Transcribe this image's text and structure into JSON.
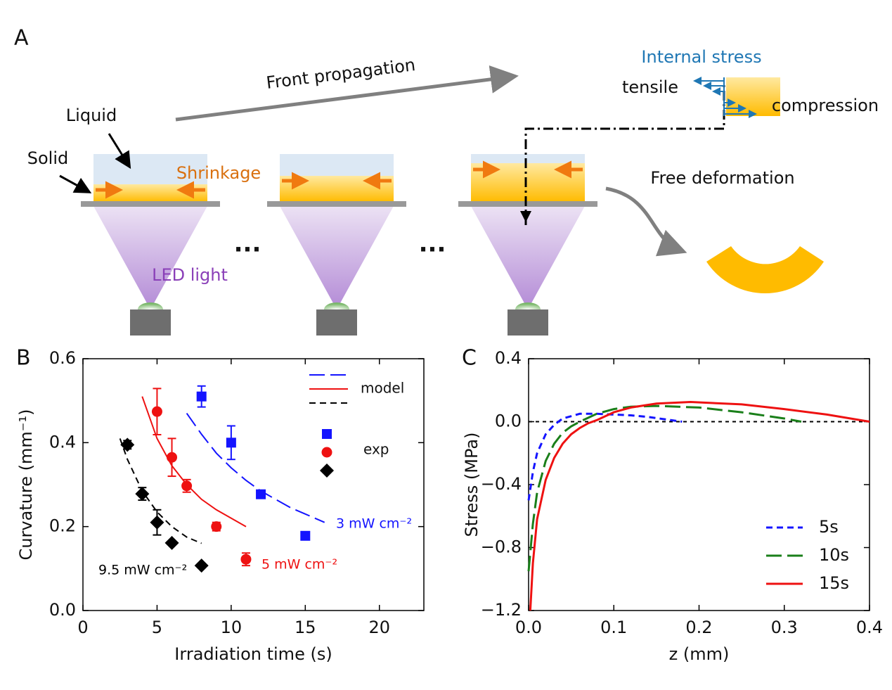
{
  "diagram": {
    "panel": "A",
    "front": "Front propagation",
    "internal_stress": "Internal stress",
    "tensile": "tensile",
    "compression": "compression",
    "liquid": "Liquid",
    "solid": "Solid",
    "shrinkage": "Shrinkage",
    "free": "Free deformation",
    "led": "LED light",
    "dots": [
      "...",
      "..."
    ]
  },
  "chart_data": [
    {
      "type": "scatter",
      "panel": "B",
      "xlabel": "Irradiation time (s)",
      "ylabel": "Curvature (mm⁻¹)",
      "xlim": [
        0,
        23
      ],
      "xticks": [
        0,
        5,
        10,
        15,
        20
      ],
      "ylim": [
        0,
        0.6
      ],
      "yticks": [
        {
          "value": 0,
          "label": "0.0"
        },
        0.2,
        0.4,
        0.6
      ],
      "legend": [
        "model",
        "exp"
      ],
      "series": [
        {
          "name": "3 mW cm⁻²",
          "color": "#1414ff",
          "marker": "square",
          "dash": "long-dashed",
          "x": [
            8,
            10,
            12,
            15
          ],
          "values": [
            0.51,
            0.4,
            0.277,
            0.178
          ],
          "errors": [
            0.025,
            0.04,
            null,
            null
          ],
          "model_x": [
            7,
            8,
            9,
            10,
            11,
            12,
            13,
            14,
            15,
            16.3
          ],
          "model_values": [
            0.47,
            0.42,
            0.375,
            0.34,
            0.31,
            0.285,
            0.265,
            0.245,
            0.23,
            0.21
          ]
        },
        {
          "name": "5 mW cm⁻²",
          "color": "#ee1111",
          "marker": "circle",
          "dash": "solid",
          "x": [
            5,
            6,
            7,
            9,
            11
          ],
          "values": [
            0.474,
            0.365,
            0.297,
            0.2,
            0.122
          ],
          "errors": [
            0.055,
            0.045,
            0.015,
            0.01,
            0.015
          ],
          "model_x": [
            4,
            5,
            6,
            7,
            8,
            9,
            10,
            11
          ],
          "model_values": [
            0.51,
            0.41,
            0.345,
            0.3,
            0.265,
            0.24,
            0.22,
            0.2
          ]
        },
        {
          "name": "9.5 mW cm⁻²",
          "color": "#000000",
          "marker": "diamond",
          "dash": "dashed",
          "x": [
            3,
            4,
            5,
            6,
            8
          ],
          "values": [
            0.395,
            0.278,
            0.21,
            0.161,
            0.107
          ],
          "errors": [
            0.01,
            0.015,
            0.03,
            null,
            null
          ],
          "model_x": [
            2.5,
            3,
            4,
            5,
            6,
            7,
            8
          ],
          "model_values": [
            0.41,
            0.36,
            0.285,
            0.235,
            0.2,
            0.175,
            0.16
          ]
        }
      ]
    },
    {
      "type": "line",
      "panel": "C",
      "xlabel": "z (mm)",
      "ylabel": "Stress (MPa)",
      "xlim": [
        0,
        0.4
      ],
      "xticks": [
        {
          "value": 0,
          "label": "0.0"
        },
        0.1,
        0.2,
        0.3,
        0.4
      ],
      "ylim": [
        -1.2,
        0.4
      ],
      "yticks": [
        {
          "value": -1.2,
          "label": "−1.2"
        },
        {
          "value": -0.8,
          "label": "−0.8"
        },
        {
          "value": -0.4,
          "label": "−0.4"
        },
        {
          "value": 0,
          "label": "0.0"
        },
        0.4
      ],
      "reference_line": 0,
      "series": [
        {
          "name": "5s",
          "color": "#1414ff",
          "dash": "dashed",
          "x": [
            0,
            0.005,
            0.01,
            0.02,
            0.03,
            0.04,
            0.06,
            0.08,
            0.1,
            0.12,
            0.14,
            0.16,
            0.18
          ],
          "values": [
            -0.5,
            -0.32,
            -0.2,
            -0.08,
            -0.02,
            0.02,
            0.05,
            0.05,
            0.045,
            0.04,
            0.03,
            0.015,
            0
          ]
        },
        {
          "name": "10s",
          "color": "#1a7f1a",
          "dash": "long-dashed",
          "x": [
            0,
            0.005,
            0.01,
            0.02,
            0.03,
            0.04,
            0.05,
            0.06,
            0.08,
            0.1,
            0.12,
            0.15,
            0.2,
            0.25,
            0.3,
            0.32
          ],
          "values": [
            -0.95,
            -0.65,
            -0.45,
            -0.25,
            -0.14,
            -0.07,
            -0.03,
            0,
            0.05,
            0.08,
            0.095,
            0.1,
            0.09,
            0.06,
            0.02,
            0
          ]
        },
        {
          "name": "15s",
          "color": "#ee1111",
          "dash": "solid",
          "x": [
            0.002,
            0.005,
            0.01,
            0.02,
            0.03,
            0.04,
            0.05,
            0.06,
            0.07,
            0.08,
            0.1,
            0.12,
            0.15,
            0.19,
            0.25,
            0.3,
            0.35,
            0.4
          ],
          "values": [
            -1.2,
            -0.9,
            -0.62,
            -0.37,
            -0.23,
            -0.14,
            -0.08,
            -0.04,
            -0.01,
            0.01,
            0.06,
            0.09,
            0.115,
            0.125,
            0.11,
            0.08,
            0.045,
            0
          ]
        }
      ]
    }
  ]
}
